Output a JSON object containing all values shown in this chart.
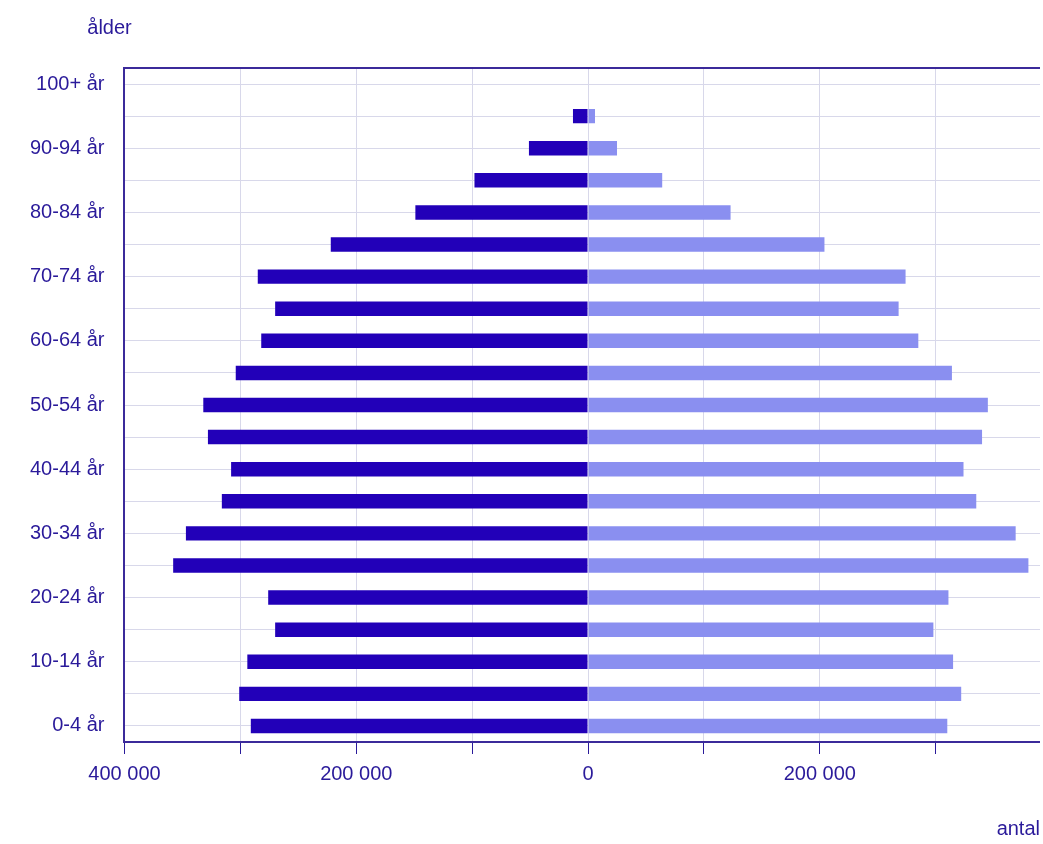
{
  "chart_data": {
    "type": "bar",
    "orientation": "horizontal",
    "stacked": true,
    "ylabel": "ålder",
    "xlabel": "antal",
    "categories": [
      "100+ år",
      null,
      "90-94 år",
      null,
      "80-84 år",
      null,
      "70-74 år",
      null,
      "60-64 år",
      null,
      "50-54 år",
      null,
      "40-44 år",
      null,
      "30-34 år",
      null,
      "20-24 år",
      null,
      "10-14 år",
      null,
      "0-4 år"
    ],
    "series": [
      {
        "color": "#2200b8",
        "values": [
          0,
          -13000,
          -51000,
          -98000,
          -149000,
          -222000,
          -285000,
          -270000,
          -282000,
          -304000,
          -332000,
          -328000,
          -308000,
          -316000,
          -347000,
          -358000,
          -276000,
          -270000,
          -294000,
          -301000,
          -291000
        ]
      },
      {
        "color": "#8a8ff0",
        "values": [
          0,
          6000,
          25000,
          64000,
          123000,
          204000,
          274000,
          268000,
          285000,
          314000,
          345000,
          340000,
          324000,
          335000,
          369000,
          380000,
          311000,
          298000,
          315000,
          322000,
          310000
        ]
      }
    ],
    "xlim": [
      -400000,
      390000
    ],
    "xticks": [
      {
        "value": -400000,
        "label": "400 000"
      },
      {
        "value": -300000,
        "label": null
      },
      {
        "value": -200000,
        "label": "200 000"
      },
      {
        "value": -100000,
        "label": null
      },
      0,
      {
        "value": 100000,
        "label": null
      },
      {
        "value": 200000,
        "label": "200 000"
      },
      {
        "value": 300000,
        "label": null
      }
    ],
    "grid": true,
    "legend": false
  }
}
